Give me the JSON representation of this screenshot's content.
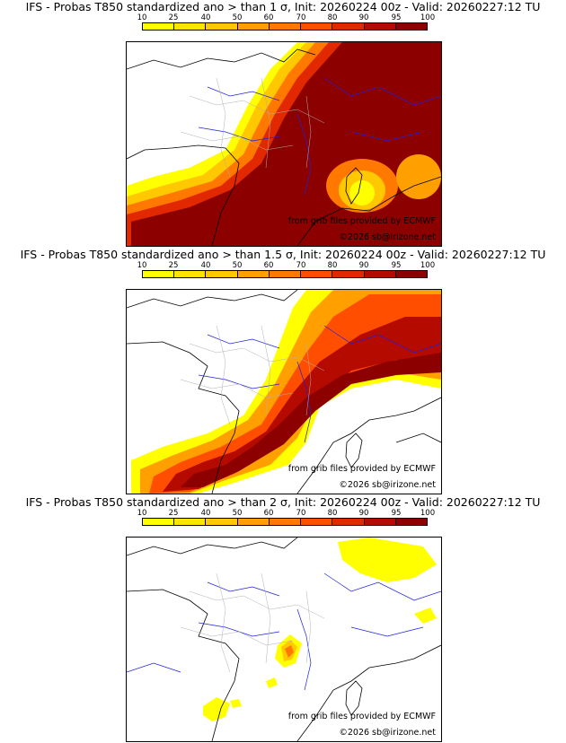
{
  "legend": {
    "ticks": [
      "10",
      "25",
      "40",
      "50",
      "60",
      "70",
      "80",
      "90",
      "95",
      "100"
    ],
    "colors": [
      "#ffff00",
      "#ffe400",
      "#ffc800",
      "#ffa000",
      "#ff7800",
      "#ff4e00",
      "#e12800",
      "#b40a00",
      "#8c0000"
    ]
  },
  "panels": [
    {
      "title": "IFS - Probas T850  standardized ano > than 1 σ, Init: 20260224 00z - Valid: 20260227:12 TU",
      "credit_source": "from grib files provided by ECMWF",
      "credit_copy": "©2026 sb@irizone.net"
    },
    {
      "title": "IFS - Probas T850  standardized ano > than 1.5 σ, Init: 20260224 00z - Valid: 20260227:12 TU",
      "credit_source": "from grib files provided by ECMWF",
      "credit_copy": "©2026 sb@irizone.net"
    },
    {
      "title": "IFS - Probas T850  standardized ano > than 2 σ, Init: 20260224 00z - Valid: 20260227:12 TU",
      "credit_source": "from grib files provided by ECMWF",
      "credit_copy": "©2026 sb@irizone.net"
    }
  ],
  "map_colors": {
    "coast": "#000000",
    "rivers": "#2020e0",
    "borders": "#b0b0b0"
  }
}
